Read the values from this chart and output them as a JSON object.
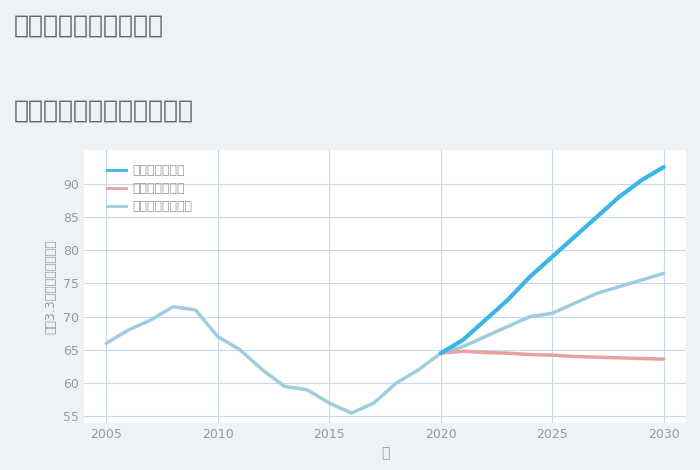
{
  "title_line1": "三重県鈴鹿市秋永町の",
  "title_line2": "中古マンションの価格推移",
  "xlabel": "年",
  "ylabel": "坪（3.3㎡）単価（万円）",
  "ylim": [
    54,
    95
  ],
  "yticks": [
    55,
    60,
    65,
    70,
    75,
    80,
    85,
    90
  ],
  "xlim": [
    2004,
    2031
  ],
  "xticks": [
    2005,
    2010,
    2015,
    2020,
    2025,
    2030
  ],
  "background_color": "#eef2f7",
  "plot_bg_color": "#ffffff",
  "grid_color": "#c8d8ea",
  "normal_scenario": {
    "x": [
      2005,
      2006,
      2007,
      2008,
      2009,
      2010,
      2011,
      2012,
      2013,
      2014,
      2015,
      2016,
      2017,
      2018,
      2019,
      2020,
      2021,
      2022,
      2023,
      2024,
      2025,
      2026,
      2027,
      2028,
      2029,
      2030
    ],
    "y": [
      66.0,
      68.0,
      69.5,
      71.5,
      71.0,
      67.0,
      65.0,
      62.0,
      59.5,
      59.0,
      57.0,
      55.5,
      57.0,
      60.0,
      62.0,
      64.5,
      65.5,
      67.0,
      68.5,
      70.0,
      70.5,
      72.0,
      73.5,
      74.5,
      75.5,
      76.5
    ],
    "color": "#a0cce0",
    "linewidth": 2.5,
    "label": "ノーマルシナリオ"
  },
  "good_scenario": {
    "x": [
      2020,
      2021,
      2022,
      2023,
      2024,
      2025,
      2026,
      2027,
      2028,
      2029,
      2030
    ],
    "y": [
      64.5,
      66.5,
      69.5,
      72.5,
      76.0,
      79.0,
      82.0,
      85.0,
      88.0,
      90.5,
      92.5
    ],
    "color": "#3ab5e8",
    "linewidth": 3.0,
    "label": "グッドシナリオ"
  },
  "bad_scenario": {
    "x": [
      2020,
      2021,
      2022,
      2023,
      2024,
      2025,
      2026,
      2027,
      2028,
      2029,
      2030
    ],
    "y": [
      64.5,
      64.8,
      64.6,
      64.5,
      64.3,
      64.2,
      64.0,
      63.9,
      63.8,
      63.7,
      63.6
    ],
    "color": "#e8a0a0",
    "linewidth": 2.5,
    "label": "バッドシナリオ"
  },
  "legend_labels": [
    "グッドシナリオ",
    "バッドシナリオ",
    "ノーマルシナリオ"
  ],
  "legend_colors": [
    "#3ab5e8",
    "#e8a0a0",
    "#a0cce0"
  ],
  "title_color": "#666666",
  "axis_color": "#999999",
  "tick_color": "#999999",
  "title_fontsize": 18,
  "label_fontsize": 10
}
